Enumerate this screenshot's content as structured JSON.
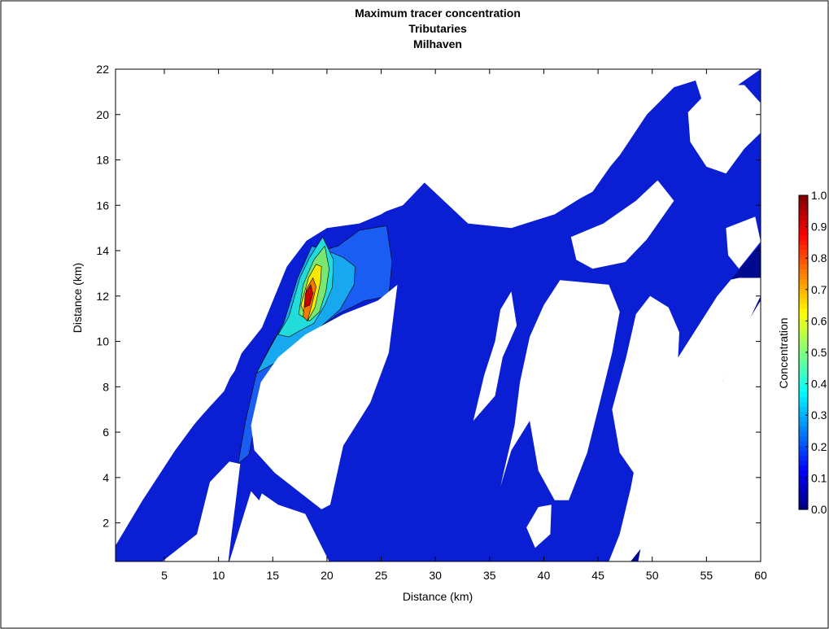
{
  "chart_data": {
    "type": "heatmap",
    "title": [
      "Maximum tracer concentration",
      "Tributaries",
      "Milhaven"
    ],
    "xlabel": "Distance (km)",
    "ylabel": "Distance (km)",
    "xlim": [
      0.5,
      60
    ],
    "ylim": [
      0.3,
      22
    ],
    "xticks": [
      5,
      10,
      15,
      20,
      25,
      30,
      35,
      40,
      45,
      50,
      55,
      60
    ],
    "yticks": [
      2,
      4,
      6,
      8,
      10,
      12,
      14,
      16,
      18,
      20,
      22
    ],
    "grid": false,
    "colorbar": {
      "label": "Concentration",
      "range": [
        0,
        1
      ],
      "tick_labels": [
        "0.0",
        "0.1",
        "0.2",
        "0.3",
        "0.4",
        "0.5",
        "0.6",
        "0.7",
        "0.8",
        "0.9",
        "1.0"
      ],
      "tick_values": [
        0,
        0.1,
        0.2,
        0.3,
        0.4,
        0.5,
        0.6,
        0.7,
        0.8,
        0.9,
        1.0
      ]
    },
    "regions": [
      {
        "level": 0.05,
        "color": "#000a8c",
        "points": [
          [
            11,
            0.3
          ],
          [
            48,
            0.3
          ],
          [
            49.5,
            1.2
          ],
          [
            50,
            2.5
          ],
          [
            52,
            3.8
          ],
          [
            54,
            5.5
          ],
          [
            56,
            7.6
          ],
          [
            58,
            10
          ],
          [
            60,
            12
          ],
          [
            60,
            0.3
          ]
        ]
      },
      {
        "level": 0.05,
        "color": "#000a8c",
        "points": [
          [
            43,
            14
          ],
          [
            48,
            15
          ],
          [
            52,
            16.5
          ],
          [
            55,
            17.5
          ],
          [
            57,
            18.5
          ],
          [
            59,
            19.6
          ],
          [
            60,
            20
          ],
          [
            60,
            12.8
          ],
          [
            58,
            12.8
          ],
          [
            56,
            12.6
          ],
          [
            53,
            12.5
          ],
          [
            50,
            12.5
          ],
          [
            46,
            13
          ],
          [
            43,
            13.2
          ]
        ]
      },
      {
        "level": 0.15,
        "color": "#0a1fd4",
        "points": [
          [
            0.5,
            0.3
          ],
          [
            0.5,
            1
          ],
          [
            3,
            3
          ],
          [
            6,
            5.2
          ],
          [
            8,
            6.5
          ],
          [
            10.5,
            7.8
          ],
          [
            12,
            9.4
          ],
          [
            14,
            10.6
          ],
          [
            16.3,
            13.3
          ],
          [
            19,
            15
          ],
          [
            23.5,
            15.4
          ],
          [
            27,
            16
          ],
          [
            29,
            17
          ],
          [
            33,
            15.2
          ],
          [
            37,
            15
          ],
          [
            41,
            15.6
          ],
          [
            44,
            16.5
          ],
          [
            47,
            18.2
          ],
          [
            49.5,
            20
          ],
          [
            52,
            21.2
          ],
          [
            54,
            21.5
          ],
          [
            55,
            20
          ],
          [
            56.5,
            20.5
          ],
          [
            57,
            21
          ],
          [
            60,
            22
          ],
          [
            60,
            14.3
          ],
          [
            56,
            12
          ],
          [
            52,
            9
          ],
          [
            49,
            6
          ],
          [
            48,
            3.5
          ],
          [
            47,
            1.5
          ],
          [
            46,
            0.3
          ],
          [
            20,
            0.3
          ],
          [
            18,
            2
          ],
          [
            15,
            2.3
          ],
          [
            13,
            3.4
          ],
          [
            11,
            0.3
          ],
          [
            5,
            0.3
          ]
        ]
      },
      {
        "level": 0.25,
        "color": "#1a5df2",
        "points": [
          [
            11.8,
            4.6
          ],
          [
            12.5,
            6.5
          ],
          [
            13.5,
            8.6
          ],
          [
            15,
            10
          ],
          [
            16.3,
            11
          ],
          [
            17.2,
            12.5
          ],
          [
            18.8,
            13.9
          ],
          [
            21,
            14.2
          ],
          [
            23,
            14.9
          ],
          [
            25.5,
            15.1
          ],
          [
            26,
            13.5
          ],
          [
            25.7,
            12
          ],
          [
            23.5,
            11.8
          ],
          [
            21,
            11.2
          ],
          [
            18.5,
            10.3
          ],
          [
            16,
            9.2
          ],
          [
            14,
            8
          ],
          [
            13.4,
            6.5
          ],
          [
            12.8,
            5
          ]
        ]
      },
      {
        "level": 0.35,
        "color": "#18a8f0",
        "points": [
          [
            13.5,
            8.6
          ],
          [
            14.5,
            9.5
          ],
          [
            16,
            10.8
          ],
          [
            17.3,
            12.8
          ],
          [
            18.6,
            14.2
          ],
          [
            20,
            14
          ],
          [
            21.5,
            13.7
          ],
          [
            22.6,
            13.3
          ],
          [
            22.5,
            12.5
          ],
          [
            21.2,
            11.4
          ],
          [
            19.3,
            10.6
          ],
          [
            17.5,
            9.8
          ],
          [
            15.4,
            9.1
          ]
        ]
      },
      {
        "level": 0.45,
        "color": "#22dcdc",
        "points": [
          [
            15.5,
            10.3
          ],
          [
            16.5,
            11.1
          ],
          [
            17.5,
            12.8
          ],
          [
            18.4,
            13.7
          ],
          [
            19.6,
            14.6
          ],
          [
            20.6,
            13.6
          ],
          [
            20.5,
            12.4
          ],
          [
            19.8,
            11.6
          ],
          [
            18.8,
            10.8
          ],
          [
            17.6,
            10.5
          ],
          [
            16.5,
            10.2
          ]
        ]
      },
      {
        "level": 0.55,
        "color": "#7ae870",
        "points": [
          [
            17.4,
            11.2
          ],
          [
            17.8,
            12.5
          ],
          [
            18.8,
            13.6
          ],
          [
            19.8,
            14.2
          ],
          [
            20.2,
            13.2
          ],
          [
            19.9,
            12.2
          ],
          [
            19.3,
            11.3
          ],
          [
            18.4,
            10.9
          ]
        ]
      },
      {
        "level": 0.75,
        "color": "#f6e800",
        "points": [
          [
            17.6,
            11.6
          ],
          [
            18.3,
            12.8
          ],
          [
            19,
            13.4
          ],
          [
            19.5,
            13.3
          ],
          [
            19.4,
            12.6
          ],
          [
            18.9,
            11.5
          ],
          [
            18.2,
            10.9
          ]
        ]
      },
      {
        "level": 0.85,
        "color": "#f57a00",
        "points": [
          [
            17.8,
            11.1
          ],
          [
            18.1,
            12.3
          ],
          [
            18.7,
            12.8
          ],
          [
            19,
            12.4
          ],
          [
            18.6,
            11.6
          ],
          [
            18.2,
            10.9
          ]
        ]
      },
      {
        "level": 0.95,
        "color": "#c90000",
        "points": [
          [
            17.9,
            11.5
          ],
          [
            18,
            12.1
          ],
          [
            18.5,
            12.5
          ],
          [
            18.7,
            12.1
          ],
          [
            18.4,
            11.6
          ]
        ]
      }
    ],
    "masks": [
      {
        "points": [
          [
            4.8,
            0.3
          ],
          [
            8,
            1.5
          ],
          [
            9.2,
            3.8
          ],
          [
            11,
            4.7
          ],
          [
            12,
            4.6
          ],
          [
            11.6,
            3
          ],
          [
            11.2,
            1.5
          ],
          [
            10.9,
            0.3
          ]
        ]
      },
      {
        "points": [
          [
            13,
            2.1
          ],
          [
            14,
            3.3
          ],
          [
            15.5,
            2.8
          ],
          [
            18,
            2.4
          ],
          [
            20.2,
            0.3
          ],
          [
            12,
            0.3
          ]
        ]
      },
      {
        "points": [
          [
            13,
            6.3
          ],
          [
            13.9,
            8.2
          ],
          [
            15.5,
            9.3
          ],
          [
            18,
            10.3
          ],
          [
            21.5,
            11.2
          ],
          [
            24.7,
            11.8
          ],
          [
            26.5,
            12.5
          ],
          [
            25.7,
            9.5
          ],
          [
            24,
            7.3
          ],
          [
            21.5,
            5.4
          ],
          [
            20.3,
            2.8
          ],
          [
            19.5,
            2.6
          ],
          [
            15.2,
            4.2
          ],
          [
            13.3,
            5.2
          ]
        ]
      },
      {
        "points": [
          [
            0.5,
            16
          ],
          [
            0.5,
            22
          ],
          [
            12,
            22
          ],
          [
            17,
            22
          ],
          [
            22,
            22
          ],
          [
            26,
            22
          ],
          [
            29.5,
            22
          ],
          [
            29.5,
            17.8
          ],
          [
            28,
            17
          ],
          [
            27,
            16.2
          ],
          [
            25,
            15.6
          ],
          [
            23,
            15.2
          ],
          [
            20,
            15
          ],
          [
            18,
            14.4
          ],
          [
            16,
            13.4
          ],
          [
            13.5,
            11.2
          ],
          [
            11.5,
            8.7
          ],
          [
            9.5,
            7.3
          ],
          [
            7.5,
            6.2
          ],
          [
            5,
            4.7
          ],
          [
            2.5,
            2.8
          ],
          [
            0.5,
            1.2
          ]
        ]
      },
      {
        "points": [
          [
            29,
            22
          ],
          [
            53,
            22
          ],
          [
            52,
            21.3
          ],
          [
            49.5,
            20.1
          ],
          [
            47,
            18.3
          ],
          [
            44.5,
            16.6
          ],
          [
            41,
            15.7
          ],
          [
            37.2,
            15.1
          ],
          [
            33,
            15.3
          ],
          [
            29.5,
            17
          ]
        ]
      },
      {
        "points": [
          [
            53.5,
            22
          ],
          [
            60,
            22
          ],
          [
            56.7,
            21
          ],
          [
            55.2,
            20.1
          ],
          [
            54.2,
            21.5
          ]
        ]
      },
      {
        "points": [
          [
            42.5,
            14.6
          ],
          [
            45.5,
            15.2
          ],
          [
            48.5,
            16.2
          ],
          [
            50.5,
            17.1
          ],
          [
            52,
            16.2
          ],
          [
            49.5,
            14.5
          ],
          [
            47.5,
            13.5
          ],
          [
            44.5,
            13.2
          ],
          [
            43,
            13.6
          ]
        ]
      },
      {
        "points": [
          [
            53.3,
            20.1
          ],
          [
            55.7,
            21.3
          ],
          [
            58.5,
            21.3
          ],
          [
            60,
            20.5
          ],
          [
            60,
            19.2
          ],
          [
            58.5,
            18.5
          ],
          [
            56.8,
            17.4
          ],
          [
            55,
            17.7
          ],
          [
            53.5,
            18.8
          ]
        ]
      },
      {
        "points": [
          [
            56.8,
            15
          ],
          [
            59.5,
            15.5
          ],
          [
            60,
            14.4
          ],
          [
            58,
            13.2
          ],
          [
            57,
            13.8
          ]
        ]
      },
      {
        "points": [
          [
            36,
            3.6
          ],
          [
            37,
            5.2
          ],
          [
            38.7,
            6.5
          ],
          [
            39.5,
            4.3
          ],
          [
            41,
            3
          ],
          [
            42.3,
            3
          ],
          [
            44,
            5.1
          ],
          [
            45,
            7
          ],
          [
            46.3,
            9.5
          ],
          [
            47,
            11.3
          ],
          [
            46,
            12.5
          ],
          [
            41.5,
            12.7
          ],
          [
            40,
            11.6
          ],
          [
            38.7,
            10.2
          ],
          [
            37.8,
            8.2
          ],
          [
            37.3,
            6.3
          ]
        ]
      },
      {
        "points": [
          [
            33.5,
            6.5
          ],
          [
            34.5,
            8.5
          ],
          [
            35.5,
            10
          ],
          [
            36,
            11.4
          ],
          [
            37,
            12.2
          ],
          [
            37.5,
            10.7
          ],
          [
            36.2,
            9.3
          ],
          [
            35.5,
            7.6
          ]
        ]
      },
      {
        "points": [
          [
            46.3,
            7
          ],
          [
            47.6,
            9.3
          ],
          [
            48.5,
            11.2
          ],
          [
            49.8,
            12
          ],
          [
            51.5,
            11.5
          ],
          [
            52.5,
            10.4
          ],
          [
            52.3,
            8.5
          ],
          [
            51.3,
            6.7
          ],
          [
            49.6,
            4.8
          ],
          [
            48.3,
            4.2
          ],
          [
            47,
            5.1
          ]
        ]
      },
      {
        "points": [
          [
            53.5,
            9.6
          ],
          [
            54.8,
            11
          ],
          [
            56.3,
            11.2
          ],
          [
            57.2,
            10.3
          ],
          [
            56.7,
            9
          ],
          [
            55.4,
            8
          ],
          [
            54,
            8.6
          ]
        ]
      },
      {
        "points": [
          [
            48.7,
            0.3
          ],
          [
            49.3,
            1.8
          ],
          [
            50.3,
            3.8
          ],
          [
            52.3,
            5.2
          ],
          [
            54.5,
            6.8
          ],
          [
            56.5,
            8.2
          ],
          [
            58.2,
            10.4
          ],
          [
            60,
            11.8
          ],
          [
            60,
            0.3
          ]
        ]
      },
      {
        "points": [
          [
            38.4,
            1.8
          ],
          [
            39.5,
            2.7
          ],
          [
            40.7,
            2.8
          ],
          [
            40.6,
            1.5
          ],
          [
            39.2,
            0.9
          ]
        ]
      }
    ]
  }
}
